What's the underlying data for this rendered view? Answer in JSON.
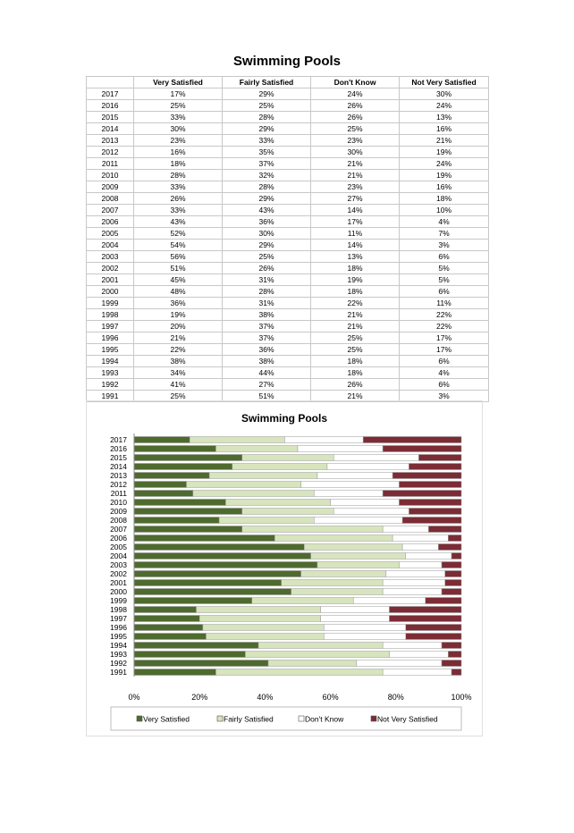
{
  "title": "Swimming Pools",
  "table": {
    "columns": [
      "",
      "Very Satisfied",
      "Fairly Satisfied",
      "Don't Know",
      "Not Very Satisfied"
    ],
    "rows": [
      [
        "2017",
        "17%",
        "29%",
        "24%",
        "30%"
      ],
      [
        "2016",
        "25%",
        "25%",
        "26%",
        "24%"
      ],
      [
        "2015",
        "33%",
        "28%",
        "26%",
        "13%"
      ],
      [
        "2014",
        "30%",
        "29%",
        "25%",
        "16%"
      ],
      [
        "2013",
        "23%",
        "33%",
        "23%",
        "21%"
      ],
      [
        "2012",
        "16%",
        "35%",
        "30%",
        "19%"
      ],
      [
        "2011",
        "18%",
        "37%",
        "21%",
        "24%"
      ],
      [
        "2010",
        "28%",
        "32%",
        "21%",
        "19%"
      ],
      [
        "2009",
        "33%",
        "28%",
        "23%",
        "16%"
      ],
      [
        "2008",
        "26%",
        "29%",
        "27%",
        "18%"
      ],
      [
        "2007",
        "33%",
        "43%",
        "14%",
        "10%"
      ],
      [
        "2006",
        "43%",
        "36%",
        "17%",
        "4%"
      ],
      [
        "2005",
        "52%",
        "30%",
        "11%",
        "7%"
      ],
      [
        "2004",
        "54%",
        "29%",
        "14%",
        "3%"
      ],
      [
        "2003",
        "56%",
        "25%",
        "13%",
        "6%"
      ],
      [
        "2002",
        "51%",
        "26%",
        "18%",
        "5%"
      ],
      [
        "2001",
        "45%",
        "31%",
        "19%",
        "5%"
      ],
      [
        "2000",
        "48%",
        "28%",
        "18%",
        "6%"
      ],
      [
        "1999",
        "36%",
        "31%",
        "22%",
        "11%"
      ],
      [
        "1998",
        "19%",
        "38%",
        "21%",
        "22%"
      ],
      [
        "1997",
        "20%",
        "37%",
        "21%",
        "22%"
      ],
      [
        "1996",
        "21%",
        "37%",
        "25%",
        "17%"
      ],
      [
        "1995",
        "22%",
        "36%",
        "25%",
        "17%"
      ],
      [
        "1994",
        "38%",
        "38%",
        "18%",
        "6%"
      ],
      [
        "1993",
        "34%",
        "44%",
        "18%",
        "4%"
      ],
      [
        "1992",
        "41%",
        "27%",
        "26%",
        "6%"
      ],
      [
        "1991",
        "25%",
        "51%",
        "21%",
        "3%"
      ]
    ]
  },
  "colors": {
    "very_satisfied": "#4e6a2e",
    "fairly_satisfied": "#d7e4bd",
    "dont_know": "#ffffff",
    "not_very_satisfied": "#7b2c35"
  },
  "chart_data": {
    "type": "bar",
    "orientation": "horizontal",
    "stacked": "100%",
    "title": "Swimming Pools",
    "categories": [
      "2017",
      "2016",
      "2015",
      "2014",
      "2013",
      "2012",
      "2011",
      "2010",
      "2009",
      "2008",
      "2007",
      "2006",
      "2005",
      "2004",
      "2003",
      "2002",
      "2001",
      "2000",
      "1999",
      "1998",
      "1997",
      "1996",
      "1995",
      "1994",
      "1993",
      "1992",
      "1991"
    ],
    "series": [
      {
        "name": "Very Satisfied",
        "values": [
          17,
          25,
          33,
          30,
          23,
          16,
          18,
          28,
          33,
          26,
          33,
          43,
          52,
          54,
          56,
          51,
          45,
          48,
          36,
          19,
          20,
          21,
          22,
          38,
          34,
          41,
          25
        ]
      },
      {
        "name": "Fairly Satisfied",
        "values": [
          29,
          25,
          28,
          29,
          33,
          35,
          37,
          32,
          28,
          29,
          43,
          36,
          30,
          29,
          25,
          26,
          31,
          28,
          31,
          38,
          37,
          37,
          36,
          38,
          44,
          27,
          51
        ]
      },
      {
        "name": "Don't Know",
        "values": [
          24,
          26,
          26,
          25,
          23,
          30,
          21,
          21,
          23,
          27,
          14,
          17,
          11,
          14,
          13,
          18,
          19,
          18,
          22,
          21,
          21,
          25,
          25,
          18,
          18,
          26,
          21
        ]
      },
      {
        "name": "Not Very Satisfied",
        "values": [
          30,
          24,
          13,
          16,
          21,
          19,
          24,
          19,
          16,
          18,
          10,
          4,
          7,
          3,
          6,
          5,
          5,
          6,
          11,
          22,
          22,
          17,
          17,
          6,
          4,
          6,
          3
        ]
      }
    ],
    "xticks": [
      "0%",
      "20%",
      "40%",
      "60%",
      "80%",
      "100%"
    ],
    "xlim": [
      0,
      100
    ],
    "legend": "bottom",
    "grid": false
  }
}
